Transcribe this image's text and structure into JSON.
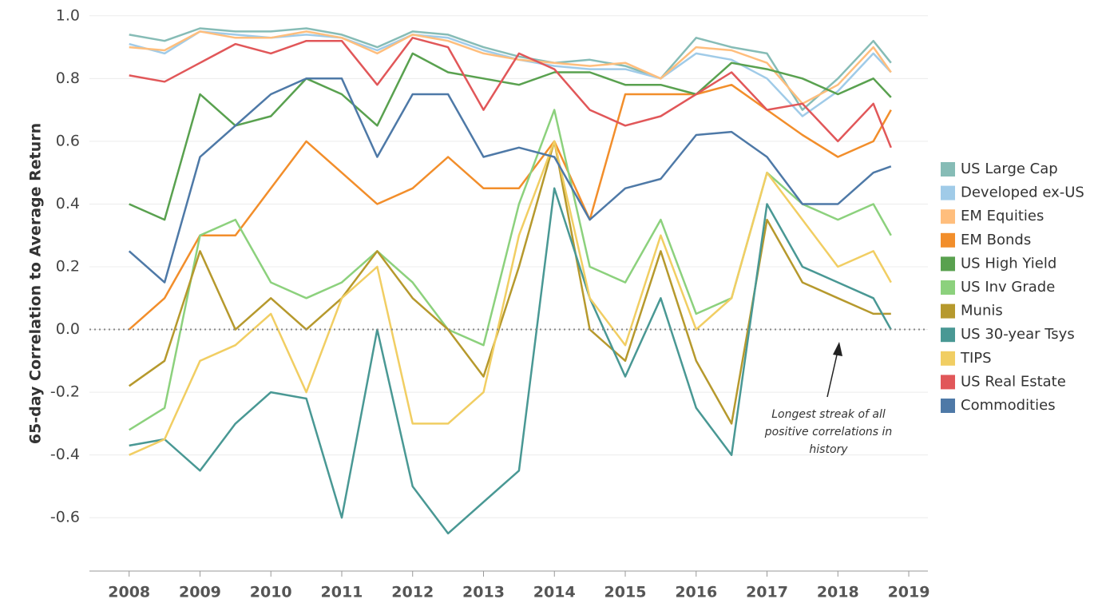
{
  "chart_data": {
    "type": "line",
    "y_label": "65-day Correlation to Average Return",
    "x": [
      2008,
      2008.5,
      2009,
      2009.5,
      2010,
      2010.5,
      2011,
      2011.5,
      2012,
      2012.5,
      2013,
      2013.5,
      2014,
      2014.5,
      2015,
      2015.5,
      2016,
      2016.5,
      2017,
      2017.5,
      2018,
      2018.5,
      2018.75
    ],
    "xlim": [
      2007.44,
      2019.27
    ],
    "xticks": [
      2008,
      2009,
      2010,
      2011,
      2012,
      2013,
      2014,
      2015,
      2016,
      2017,
      2018,
      2019
    ],
    "ylim": [
      -0.77,
      1.03
    ],
    "yticks": [
      {
        "value": -0.6,
        "label": "-0.6"
      },
      {
        "value": -0.4,
        "label": "-0.4"
      },
      {
        "value": -0.2,
        "label": "-0.2"
      },
      {
        "value": 0,
        "label": "0.0"
      },
      {
        "value": 0.2,
        "label": "0.2"
      },
      {
        "value": 0.4,
        "label": "0.4"
      },
      {
        "value": 0.6,
        "label": "0.6"
      },
      {
        "value": 0.8,
        "label": "0.8"
      },
      {
        "value": 1,
        "label": "1.0"
      }
    ],
    "grid": true,
    "reference_line": 0,
    "legend": "right",
    "annotation": "Longest streak of all positive correlations in history",
    "series": [
      {
        "name": "US Large Cap",
        "color": "#86bcb6",
        "values": [
          0.94,
          0.92,
          0.96,
          0.95,
          0.95,
          0.96,
          0.94,
          0.9,
          0.95,
          0.94,
          0.9,
          0.87,
          0.85,
          0.86,
          0.84,
          0.8,
          0.93,
          0.9,
          0.88,
          0.7,
          0.8,
          0.92,
          0.85
        ]
      },
      {
        "name": "Developed ex-US",
        "color": "#a0cbe8",
        "values": [
          0.91,
          0.88,
          0.95,
          0.94,
          0.93,
          0.94,
          0.93,
          0.89,
          0.94,
          0.93,
          0.89,
          0.86,
          0.84,
          0.83,
          0.83,
          0.8,
          0.88,
          0.86,
          0.8,
          0.68,
          0.76,
          0.88,
          0.82
        ]
      },
      {
        "name": "EM Equities",
        "color": "#ffbe7d",
        "values": [
          0.9,
          0.89,
          0.95,
          0.93,
          0.93,
          0.95,
          0.93,
          0.88,
          0.94,
          0.92,
          0.88,
          0.86,
          0.85,
          0.84,
          0.85,
          0.8,
          0.9,
          0.89,
          0.85,
          0.72,
          0.78,
          0.9,
          0.82
        ]
      },
      {
        "name": "EM Bonds",
        "color": "#f28e2b",
        "values": [
          0.0,
          0.1,
          0.3,
          0.3,
          0.45,
          0.6,
          0.5,
          0.4,
          0.45,
          0.55,
          0.45,
          0.45,
          0.6,
          0.35,
          0.75,
          0.75,
          0.75,
          0.78,
          0.7,
          0.62,
          0.55,
          0.6,
          0.7
        ]
      },
      {
        "name": "US High Yield",
        "color": "#59a14f",
        "values": [
          0.4,
          0.35,
          0.75,
          0.65,
          0.68,
          0.8,
          0.75,
          0.65,
          0.88,
          0.82,
          0.8,
          0.78,
          0.82,
          0.82,
          0.78,
          0.78,
          0.75,
          0.85,
          0.83,
          0.8,
          0.75,
          0.8,
          0.74
        ]
      },
      {
        "name": "US Inv Grade",
        "color": "#8cd17d",
        "values": [
          -0.32,
          -0.25,
          0.3,
          0.35,
          0.15,
          0.1,
          0.15,
          0.25,
          0.15,
          0.0,
          -0.05,
          0.4,
          0.7,
          0.2,
          0.15,
          0.35,
          0.05,
          0.1,
          0.5,
          0.4,
          0.35,
          0.4,
          0.3
        ]
      },
      {
        "name": "Munis",
        "color": "#b6992d",
        "values": [
          -0.18,
          -0.1,
          0.25,
          0.0,
          0.1,
          0.0,
          0.1,
          0.25,
          0.1,
          0.0,
          -0.15,
          0.2,
          0.6,
          0.0,
          -0.1,
          0.25,
          -0.1,
          -0.3,
          0.35,
          0.15,
          0.1,
          0.05,
          0.05
        ]
      },
      {
        "name": "US 30-year Tsys",
        "color": "#499894",
        "values": [
          -0.37,
          -0.35,
          -0.45,
          -0.3,
          -0.2,
          -0.22,
          -0.6,
          0.0,
          -0.5,
          -0.65,
          -0.55,
          -0.45,
          0.45,
          0.1,
          -0.15,
          0.1,
          -0.25,
          -0.4,
          0.4,
          0.2,
          0.15,
          0.1,
          0.0
        ]
      },
      {
        "name": "TIPS",
        "color": "#f1ce63",
        "values": [
          -0.4,
          -0.35,
          -0.1,
          -0.05,
          0.05,
          -0.2,
          0.1,
          0.2,
          -0.3,
          -0.3,
          -0.2,
          0.3,
          0.6,
          0.1,
          -0.05,
          0.3,
          0.0,
          0.1,
          0.5,
          0.35,
          0.2,
          0.25,
          0.15
        ]
      },
      {
        "name": "US Real Estate",
        "color": "#e15759",
        "values": [
          0.81,
          0.79,
          0.85,
          0.91,
          0.88,
          0.92,
          0.92,
          0.78,
          0.93,
          0.9,
          0.7,
          0.88,
          0.83,
          0.7,
          0.65,
          0.68,
          0.75,
          0.82,
          0.7,
          0.72,
          0.6,
          0.72,
          0.58
        ]
      },
      {
        "name": "Commodities",
        "color": "#4e79a7",
        "values": [
          0.25,
          0.15,
          0.55,
          0.65,
          0.75,
          0.8,
          0.8,
          0.55,
          0.75,
          0.75,
          0.55,
          0.58,
          0.55,
          0.35,
          0.45,
          0.48,
          0.62,
          0.63,
          0.55,
          0.4,
          0.4,
          0.5,
          0.52
        ]
      }
    ]
  }
}
